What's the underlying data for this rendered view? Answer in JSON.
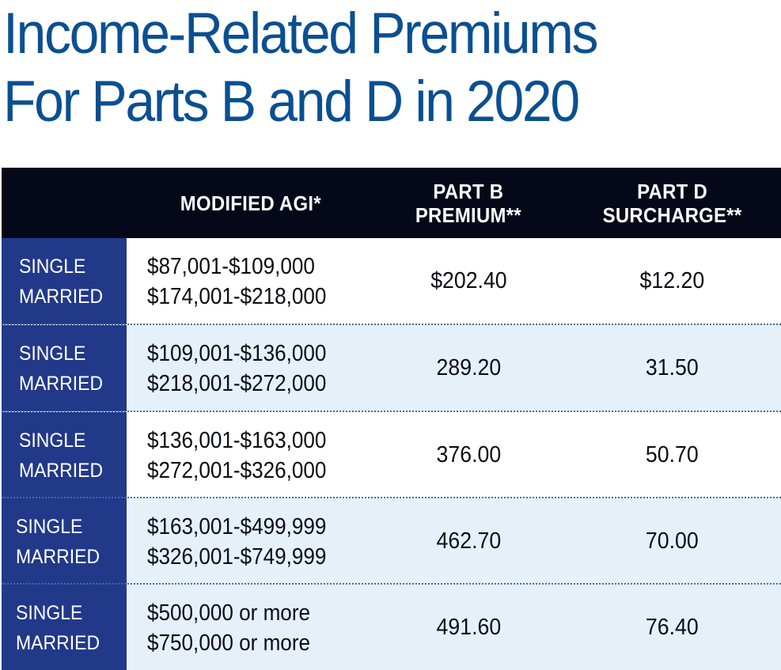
{
  "title": {
    "line1": "Income-Related Premiums",
    "line2": "For Parts B and D in 2020"
  },
  "colors": {
    "title": "#0a4f92",
    "header_bg": "#050818",
    "status_bg": "#22398a",
    "row_alt_bg": "#e6f0f9",
    "separator": "#4a6aa3"
  },
  "table": {
    "headers": {
      "agi": "MODIFIED AGI*",
      "part_b_line1": "PART B",
      "part_b_line2": "PREMIUM**",
      "part_d_line1": "PART D",
      "part_d_line2": "SURCHARGE**"
    },
    "rows": [
      {
        "status_single": "SINGLE",
        "status_married": "MARRIED",
        "agi_single": "$87,001-$109,000",
        "agi_married": "$174,001-$218,000",
        "part_b": "$202.40",
        "part_d": "$12.20"
      },
      {
        "status_single": "SINGLE",
        "status_married": "MARRIED",
        "agi_single": "$109,001-$136,000",
        "agi_married": "$218,001-$272,000",
        "part_b": "289.20",
        "part_d": "31.50"
      },
      {
        "status_single": "SINGLE",
        "status_married": "MARRIED",
        "agi_single": "$136,001-$163,000",
        "agi_married": "$272,001-$326,000",
        "part_b": "376.00",
        "part_d": "50.70"
      },
      {
        "status_single": "SINGLE",
        "status_married": "MARRIED",
        "agi_single": "$163,001-$499,999",
        "agi_married": "$326,001-$749,999",
        "part_b": "462.70",
        "part_d": "70.00"
      },
      {
        "status_single": "SINGLE",
        "status_married": "MARRIED",
        "agi_single": "$500,000 or more",
        "agi_married": "$750,000 or more",
        "part_b": "491.60",
        "part_d": "76.40"
      }
    ]
  }
}
